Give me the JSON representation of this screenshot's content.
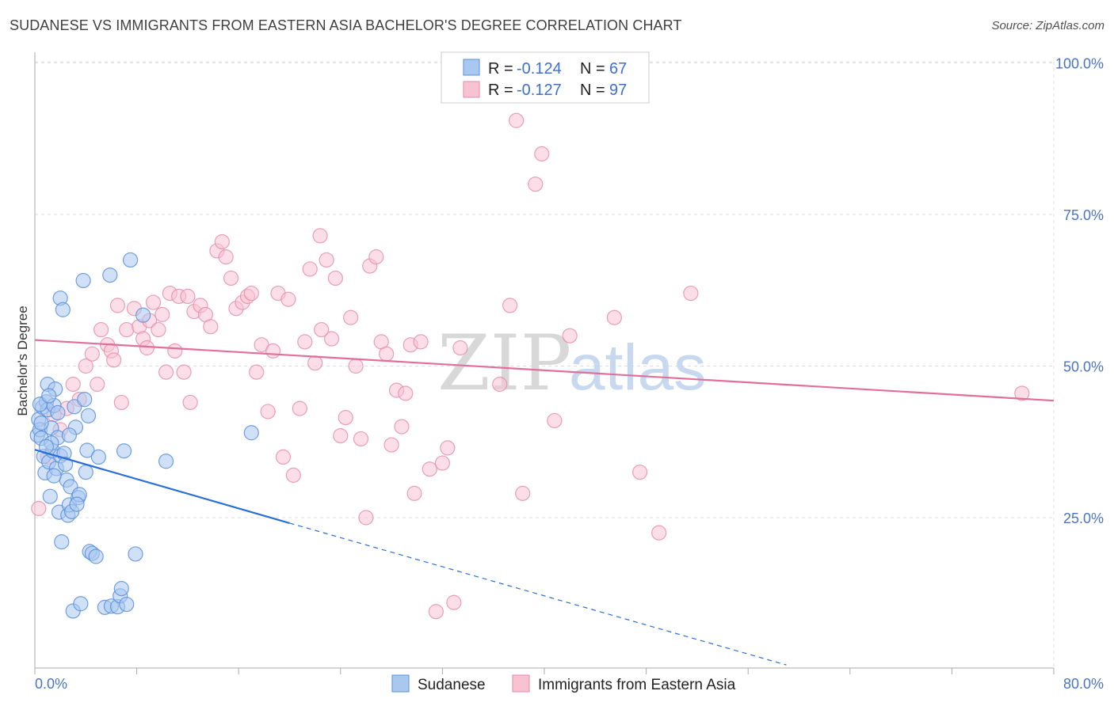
{
  "title": "SUDANESE VS IMMIGRANTS FROM EASTERN ASIA BACHELOR'S DEGREE CORRELATION CHART",
  "source": "Source: ZipAtlas.com",
  "watermark": {
    "zip": "ZIP",
    "atlas": "atlas"
  },
  "colors": {
    "blue_fill": "#a9c8f0",
    "blue_stroke": "#5a8fdc",
    "blue_line": "#2a6fd6",
    "pink_fill": "#f7c3d3",
    "pink_stroke": "#e58aa8",
    "pink_line": "#e0709a",
    "grid": "#dddddd",
    "axis_tick": "#4a74c4"
  },
  "legend": {
    "series": [
      {
        "r_label": "R =",
        "r_value": "-0.124",
        "n_label": "N =",
        "n_value": "67"
      },
      {
        "r_label": "R =",
        "r_value": "-0.127",
        "n_label": "N =",
        "n_value": "97"
      }
    ]
  },
  "chart_data": {
    "type": "scatter",
    "title": "SUDANESE VS IMMIGRANTS FROM EASTERN ASIA BACHELOR'S DEGREE CORRELATION CHART",
    "xlabel": "",
    "ylabel": "Bachelor's Degree",
    "xlim": [
      0,
      80
    ],
    "ylim": [
      0,
      100
    ],
    "x_tick_labels": [
      "0.0%",
      "80.0%"
    ],
    "y_tick_values": [
      25,
      50,
      75,
      100
    ],
    "y_tick_labels": [
      "25.0%",
      "50.0%",
      "75.0%",
      "100.0%"
    ],
    "grid": true,
    "legend_position": "top-center",
    "series": [
      {
        "name": "Sudanese",
        "color": "#a9c8f0",
        "trend": {
          "x_start": 0,
          "y_start": 36.2,
          "x_solid_end": 20,
          "y_solid_end": 24.1,
          "x_end": 59,
          "y_end": 0.7
        },
        "points": [
          [
            0.2,
            38.6
          ],
          [
            0.3,
            41.2
          ],
          [
            0.4,
            39.5
          ],
          [
            0.5,
            38.1
          ],
          [
            0.6,
            43.2
          ],
          [
            0.7,
            35.1
          ],
          [
            0.8,
            32.4
          ],
          [
            0.9,
            44.1
          ],
          [
            1.0,
            47.0
          ],
          [
            1.0,
            42.8
          ],
          [
            1.1,
            34.2
          ],
          [
            1.2,
            28.5
          ],
          [
            1.3,
            39.8
          ],
          [
            1.4,
            36.0
          ],
          [
            1.5,
            43.5
          ],
          [
            1.6,
            46.2
          ],
          [
            1.7,
            33.1
          ],
          [
            1.8,
            38.2
          ],
          [
            1.9,
            25.9
          ],
          [
            2.0,
            35.2
          ],
          [
            2.0,
            61.2
          ],
          [
            2.1,
            21.0
          ],
          [
            2.2,
            59.3
          ],
          [
            2.3,
            35.6
          ],
          [
            2.5,
            31.2
          ],
          [
            2.6,
            25.4
          ],
          [
            2.7,
            27.1
          ],
          [
            2.8,
            30.1
          ],
          [
            2.9,
            26.0
          ],
          [
            3.0,
            9.6
          ],
          [
            3.1,
            43.3
          ],
          [
            3.2,
            39.9
          ],
          [
            3.4,
            28.3
          ],
          [
            3.5,
            28.8
          ],
          [
            3.6,
            10.8
          ],
          [
            3.8,
            64.1
          ],
          [
            3.9,
            44.5
          ],
          [
            4.0,
            32.5
          ],
          [
            4.1,
            36.1
          ],
          [
            4.3,
            19.4
          ],
          [
            4.5,
            19.1
          ],
          [
            4.8,
            18.6
          ],
          [
            5.0,
            35.0
          ],
          [
            5.5,
            10.2
          ],
          [
            5.9,
            65.0
          ],
          [
            6.0,
            10.4
          ],
          [
            6.5,
            10.3
          ],
          [
            6.7,
            12.1
          ],
          [
            6.8,
            13.3
          ],
          [
            7.0,
            36.0
          ],
          [
            7.2,
            10.7
          ],
          [
            7.5,
            67.5
          ],
          [
            7.9,
            19.0
          ],
          [
            8.5,
            58.4
          ],
          [
            10.3,
            34.3
          ],
          [
            17.0,
            39.0
          ],
          [
            0.5,
            40.6
          ],
          [
            1.3,
            37.3
          ],
          [
            1.8,
            42.3
          ],
          [
            2.4,
            33.8
          ],
          [
            3.3,
            27.2
          ],
          [
            0.9,
            36.7
          ],
          [
            1.5,
            31.9
          ],
          [
            2.7,
            38.6
          ],
          [
            4.2,
            41.8
          ],
          [
            0.4,
            43.7
          ],
          [
            1.1,
            45.1
          ]
        ]
      },
      {
        "name": "Immigrants from Eastern Asia",
        "color": "#f7c3d3",
        "trend": {
          "x_start": 0,
          "y_start": 54.3,
          "x_end": 80,
          "y_end": 44.3
        },
        "points": [
          [
            0.3,
            26.5
          ],
          [
            1.0,
            35.0
          ],
          [
            1.5,
            42.0
          ],
          [
            2.0,
            39.5
          ],
          [
            2.5,
            43.0
          ],
          [
            3.0,
            47.0
          ],
          [
            3.5,
            44.5
          ],
          [
            4.0,
            50.0
          ],
          [
            4.5,
            52.0
          ],
          [
            4.9,
            47.0
          ],
          [
            5.2,
            56.0
          ],
          [
            5.7,
            53.5
          ],
          [
            6.0,
            52.5
          ],
          [
            6.2,
            51.0
          ],
          [
            6.5,
            60.0
          ],
          [
            6.8,
            44.0
          ],
          [
            7.2,
            56.0
          ],
          [
            7.8,
            59.5
          ],
          [
            8.2,
            56.5
          ],
          [
            8.5,
            54.5
          ],
          [
            8.8,
            53.0
          ],
          [
            9.0,
            57.5
          ],
          [
            9.3,
            60.5
          ],
          [
            9.7,
            56.0
          ],
          [
            10.0,
            58.5
          ],
          [
            10.3,
            49.0
          ],
          [
            10.6,
            62.0
          ],
          [
            11.0,
            52.5
          ],
          [
            11.3,
            61.5
          ],
          [
            11.7,
            49.0
          ],
          [
            12.0,
            61.5
          ],
          [
            12.5,
            59.0
          ],
          [
            13.0,
            60.0
          ],
          [
            13.4,
            58.5
          ],
          [
            13.8,
            56.5
          ],
          [
            14.3,
            69.0
          ],
          [
            14.7,
            70.5
          ],
          [
            15.0,
            68.0
          ],
          [
            15.4,
            64.5
          ],
          [
            15.8,
            59.5
          ],
          [
            16.3,
            60.5
          ],
          [
            16.7,
            61.5
          ],
          [
            17.0,
            62.0
          ],
          [
            17.4,
            49.0
          ],
          [
            17.8,
            53.5
          ],
          [
            18.3,
            42.5
          ],
          [
            18.7,
            52.5
          ],
          [
            19.1,
            62.0
          ],
          [
            19.5,
            35.0
          ],
          [
            19.9,
            61.0
          ],
          [
            20.3,
            32.0
          ],
          [
            20.8,
            43.0
          ],
          [
            21.2,
            54.0
          ],
          [
            21.6,
            66.0
          ],
          [
            22.0,
            50.5
          ],
          [
            22.4,
            71.5
          ],
          [
            22.9,
            67.5
          ],
          [
            23.3,
            54.5
          ],
          [
            23.6,
            64.5
          ],
          [
            24.0,
            38.5
          ],
          [
            24.4,
            41.5
          ],
          [
            24.8,
            58.0
          ],
          [
            25.2,
            50.0
          ],
          [
            25.6,
            38.0
          ],
          [
            26.0,
            25.0
          ],
          [
            26.3,
            66.5
          ],
          [
            26.8,
            68.0
          ],
          [
            27.2,
            54.0
          ],
          [
            27.6,
            52.0
          ],
          [
            28.0,
            37.0
          ],
          [
            28.4,
            46.0
          ],
          [
            28.8,
            40.0
          ],
          [
            29.1,
            45.5
          ],
          [
            29.5,
            53.5
          ],
          [
            29.8,
            29.0
          ],
          [
            30.3,
            54.0
          ],
          [
            31.0,
            33.0
          ],
          [
            31.5,
            9.5
          ],
          [
            32.0,
            34.0
          ],
          [
            32.4,
            36.5
          ],
          [
            32.9,
            11.0
          ],
          [
            33.4,
            53.0
          ],
          [
            36.5,
            47.0
          ],
          [
            37.3,
            60.0
          ],
          [
            37.8,
            90.5
          ],
          [
            38.3,
            29.0
          ],
          [
            39.3,
            80.0
          ],
          [
            39.8,
            85.0
          ],
          [
            40.8,
            41.0
          ],
          [
            42.0,
            55.0
          ],
          [
            45.5,
            58.0
          ],
          [
            47.5,
            32.5
          ],
          [
            49.0,
            22.5
          ],
          [
            51.5,
            62.0
          ],
          [
            77.5,
            45.5
          ],
          [
            12.2,
            44.0
          ],
          [
            22.5,
            56.0
          ]
        ]
      }
    ]
  },
  "bottom_legend": {
    "items": [
      "Sudanese",
      "Immigrants from Eastern Asia"
    ]
  }
}
